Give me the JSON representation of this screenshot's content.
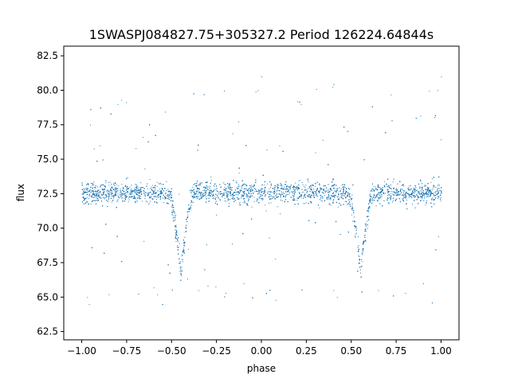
{
  "chart_data": {
    "type": "scatter",
    "title": "1SWASPJ084827.75+305327.2 Period 126224.64844s",
    "xlabel": "phase",
    "ylabel": "flux",
    "xlim": [
      -1.1,
      1.1
    ],
    "ylim": [
      61.9,
      83.2
    ],
    "xticks": [
      -1.0,
      -0.75,
      -0.5,
      -0.25,
      0.0,
      0.25,
      0.5,
      0.75,
      1.0
    ],
    "xtick_labels": [
      "−1.00",
      "−0.75",
      "−0.50",
      "−0.25",
      "0.00",
      "0.25",
      "0.50",
      "0.75",
      "1.00"
    ],
    "yticks": [
      62.5,
      65.0,
      67.5,
      70.0,
      72.5,
      75.0,
      77.5,
      80.0,
      82.5
    ],
    "ytick_labels": [
      "62.5",
      "65.0",
      "67.5",
      "70.0",
      "72.5",
      "75.0",
      "77.5",
      "80.0",
      "82.5"
    ],
    "grid": false,
    "point_color": "#1f77b4",
    "series": [
      {
        "baseline_flux": 72.6,
        "eclipse_phases": [
          -0.45,
          0.55
        ],
        "eclipse_min_flux": 66.8,
        "phase_range": [
          -1.0,
          1.0
        ],
        "points": [
          [
            -1.0,
            72.5
          ],
          [
            -0.98,
            72.9
          ],
          [
            -0.95,
            72.3
          ],
          [
            -0.92,
            72.7
          ],
          [
            -0.9,
            72.6
          ],
          [
            -0.87,
            73.0
          ],
          [
            -0.85,
            72.4
          ],
          [
            -0.82,
            72.8
          ],
          [
            -0.8,
            72.5
          ],
          [
            -0.77,
            72.9
          ],
          [
            -0.75,
            72.6
          ],
          [
            -0.72,
            72.3
          ],
          [
            -0.7,
            72.8
          ],
          [
            -0.67,
            72.7
          ],
          [
            -0.65,
            72.4
          ],
          [
            -0.62,
            72.9
          ],
          [
            -0.6,
            72.6
          ],
          [
            -0.57,
            72.5
          ],
          [
            -0.55,
            72.2
          ],
          [
            -0.52,
            71.8
          ],
          [
            -0.5,
            71.0
          ],
          [
            -0.48,
            69.5
          ],
          [
            -0.46,
            67.5
          ],
          [
            -0.45,
            67.0
          ],
          [
            -0.44,
            67.6
          ],
          [
            -0.42,
            69.8
          ],
          [
            -0.4,
            71.5
          ],
          [
            -0.38,
            72.3
          ],
          [
            -0.35,
            72.6
          ],
          [
            -0.32,
            72.8
          ],
          [
            -0.3,
            72.4
          ],
          [
            -0.27,
            72.7
          ],
          [
            -0.25,
            72.9
          ],
          [
            -0.22,
            72.5
          ],
          [
            -0.2,
            72.6
          ],
          [
            -0.17,
            72.8
          ],
          [
            -0.15,
            72.4
          ],
          [
            -0.12,
            72.7
          ],
          [
            -0.1,
            72.6
          ],
          [
            -0.07,
            72.3
          ],
          [
            -0.05,
            72.8
          ],
          [
            -0.02,
            72.5
          ],
          [
            0.0,
            72.6
          ],
          [
            0.02,
            72.4
          ],
          [
            0.05,
            72.7
          ],
          [
            0.07,
            72.9
          ],
          [
            0.1,
            72.5
          ],
          [
            0.12,
            72.3
          ],
          [
            0.15,
            72.7
          ],
          [
            0.17,
            72.6
          ],
          [
            0.2,
            72.8
          ],
          [
            0.22,
            72.4
          ],
          [
            0.25,
            72.6
          ],
          [
            0.27,
            72.9
          ],
          [
            0.3,
            72.5
          ],
          [
            0.32,
            72.7
          ],
          [
            0.35,
            72.4
          ],
          [
            0.37,
            72.8
          ],
          [
            0.4,
            72.6
          ],
          [
            0.42,
            72.3
          ],
          [
            0.45,
            72.2
          ],
          [
            0.48,
            71.8
          ],
          [
            0.5,
            71.0
          ],
          [
            0.52,
            69.5
          ],
          [
            0.54,
            67.5
          ],
          [
            0.55,
            67.0
          ],
          [
            0.56,
            67.6
          ],
          [
            0.58,
            69.8
          ],
          [
            0.6,
            71.5
          ],
          [
            0.62,
            72.3
          ],
          [
            0.65,
            72.6
          ],
          [
            0.67,
            72.8
          ],
          [
            0.7,
            72.4
          ],
          [
            0.72,
            72.7
          ],
          [
            0.75,
            72.9
          ],
          [
            0.77,
            72.5
          ],
          [
            0.8,
            72.6
          ],
          [
            0.82,
            72.8
          ],
          [
            0.85,
            72.4
          ],
          [
            0.87,
            72.7
          ],
          [
            0.9,
            72.6
          ],
          [
            0.92,
            72.3
          ],
          [
            0.95,
            72.8
          ],
          [
            0.97,
            72.5
          ],
          [
            1.0,
            72.6
          ],
          [
            -0.97,
            65.0
          ],
          [
            -0.96,
            64.5
          ],
          [
            -0.8,
            79.0
          ],
          [
            -0.78,
            79.3
          ],
          [
            -0.7,
            75.8
          ],
          [
            -0.6,
            65.7
          ],
          [
            -0.58,
            65.2
          ],
          [
            -0.35,
            65.5
          ],
          [
            -0.2,
            65.3
          ],
          [
            -0.1,
            66.0
          ],
          [
            -0.02,
            80.0
          ],
          [
            0.0,
            81.0
          ],
          [
            0.08,
            64.8
          ],
          [
            0.2,
            79.2
          ],
          [
            0.22,
            79.0
          ],
          [
            0.3,
            75.5
          ],
          [
            0.4,
            65.5
          ],
          [
            0.42,
            65.0
          ],
          [
            0.65,
            65.5
          ],
          [
            0.8,
            65.3
          ],
          [
            0.9,
            66.0
          ],
          [
            0.98,
            80.0
          ],
          [
            1.0,
            81.0
          ],
          [
            -0.9,
            76.0
          ],
          [
            0.1,
            76.0
          ]
        ]
      }
    ]
  }
}
